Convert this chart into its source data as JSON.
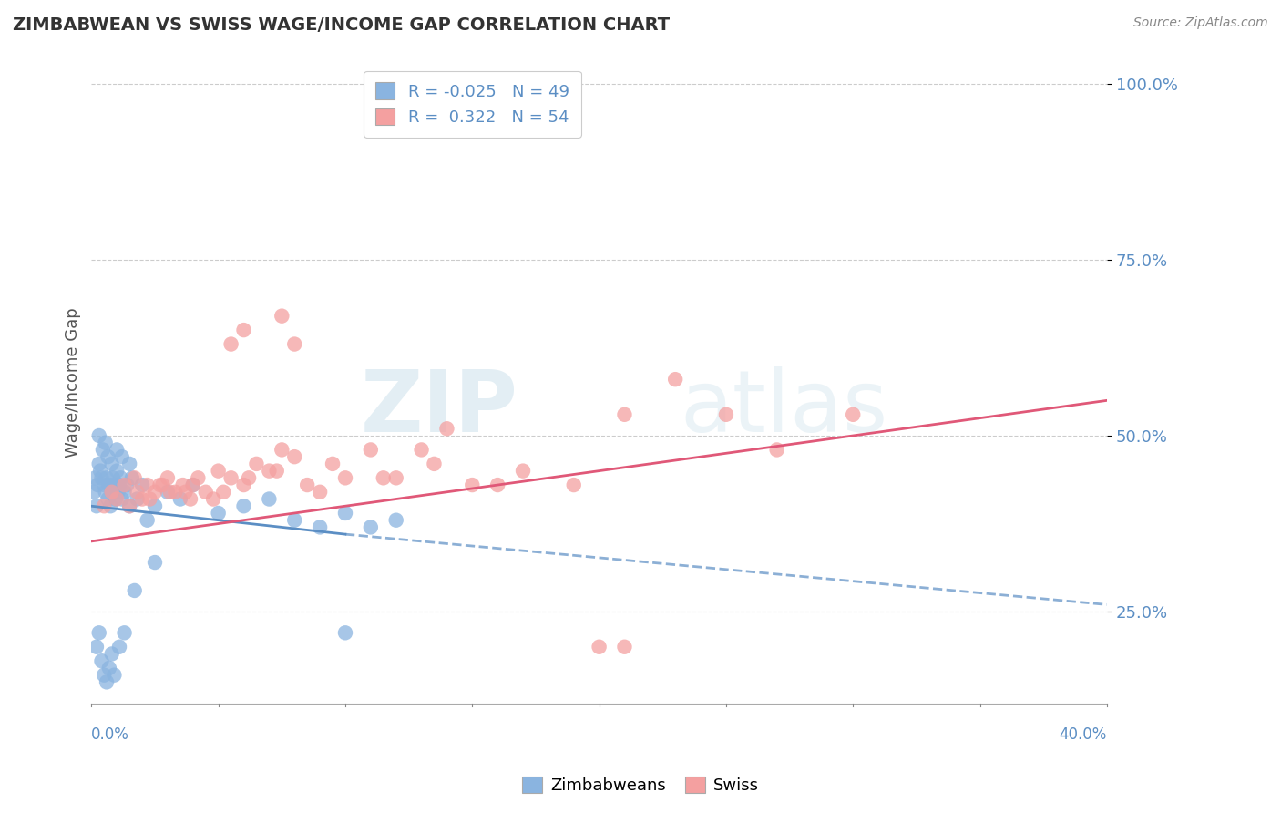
{
  "title": "ZIMBABWEAN VS SWISS WAGE/INCOME GAP CORRELATION CHART",
  "source": "Source: ZipAtlas.com",
  "ylabel": "Wage/Income Gap",
  "xlim": [
    0.0,
    40.0
  ],
  "ylim": [
    12.0,
    103.0
  ],
  "yticks": [
    25.0,
    50.0,
    75.0,
    100.0
  ],
  "legend_blue_R": "-0.025",
  "legend_blue_N": "49",
  "legend_pink_R": "0.322",
  "legend_pink_N": "54",
  "blue_color": "#8ab4e0",
  "pink_color": "#f4a0a0",
  "blue_line_color": "#5b8ec4",
  "pink_line_color": "#e05878",
  "blue_scatter_x": [
    0.1,
    0.15,
    0.2,
    0.25,
    0.3,
    0.35,
    0.4,
    0.5,
    0.55,
    0.6,
    0.65,
    0.7,
    0.75,
    0.8,
    0.85,
    0.9,
    0.95,
    1.0,
    1.05,
    1.1,
    1.15,
    1.2,
    1.3,
    1.4,
    1.5,
    1.6,
    1.8,
    2.0,
    2.5,
    3.0,
    3.5,
    4.0,
    5.0,
    6.0,
    7.0,
    8.0,
    9.0,
    10.0,
    11.0,
    12.0,
    0.3,
    0.45,
    0.55,
    0.65,
    0.8,
    1.0,
    1.2,
    1.5,
    2.2
  ],
  "blue_scatter_y": [
    42,
    44,
    40,
    43,
    46,
    45,
    44,
    43,
    42,
    44,
    41,
    43,
    40,
    42,
    44,
    43,
    41,
    45,
    42,
    43,
    44,
    41,
    42,
    43,
    40,
    44,
    41,
    43,
    40,
    42,
    41,
    43,
    39,
    40,
    41,
    38,
    37,
    39,
    37,
    38,
    50,
    48,
    49,
    47,
    46,
    48,
    47,
    46,
    38
  ],
  "blue_scatter_extra_x": [
    0.2,
    0.3,
    0.4,
    0.5,
    0.6,
    0.7,
    0.8,
    0.9,
    1.1,
    1.3,
    1.7,
    2.5,
    10.0
  ],
  "blue_scatter_extra_y": [
    20,
    22,
    18,
    16,
    15,
    17,
    19,
    16,
    20,
    22,
    28,
    32,
    22
  ],
  "pink_scatter_x": [
    0.5,
    0.8,
    1.0,
    1.3,
    1.5,
    1.7,
    2.0,
    2.2,
    2.5,
    2.8,
    3.0,
    3.3,
    3.6,
    3.9,
    4.2,
    4.5,
    5.0,
    5.5,
    6.0,
    6.5,
    7.0,
    7.5,
    8.0,
    9.0,
    10.0,
    11.0,
    12.0,
    13.0,
    14.0,
    15.0,
    17.0,
    19.0,
    21.0,
    23.0,
    25.0,
    27.0,
    30.0,
    1.8,
    2.3,
    2.7,
    3.1,
    3.7,
    4.0,
    4.8,
    5.2,
    6.2,
    7.3,
    8.5,
    9.5,
    11.5,
    13.5,
    16.0,
    20.0
  ],
  "pink_scatter_y": [
    40,
    42,
    41,
    43,
    40,
    44,
    41,
    43,
    42,
    43,
    44,
    42,
    43,
    41,
    44,
    42,
    45,
    44,
    43,
    46,
    45,
    48,
    47,
    42,
    44,
    48,
    44,
    48,
    51,
    43,
    45,
    43,
    53,
    58,
    53,
    48,
    53,
    42,
    41,
    43,
    42,
    42,
    43,
    41,
    42,
    44,
    45,
    43,
    46,
    44,
    46,
    43,
    20
  ],
  "pink_scatter_extra_x": [
    5.5,
    6.0,
    7.5,
    8.0,
    21.0
  ],
  "pink_scatter_extra_y": [
    63,
    65,
    67,
    63,
    20
  ],
  "blue_line_x0": 0.0,
  "blue_line_x_solid_end": 10.0,
  "blue_line_x_dashed_end": 40.0,
  "blue_line_y0": 40.0,
  "blue_line_y_solid_end": 36.0,
  "blue_line_y_dashed_end": 26.0,
  "pink_line_x0": 0.0,
  "pink_line_x1": 40.0,
  "pink_line_y0": 35.0,
  "pink_line_y1": 55.0
}
